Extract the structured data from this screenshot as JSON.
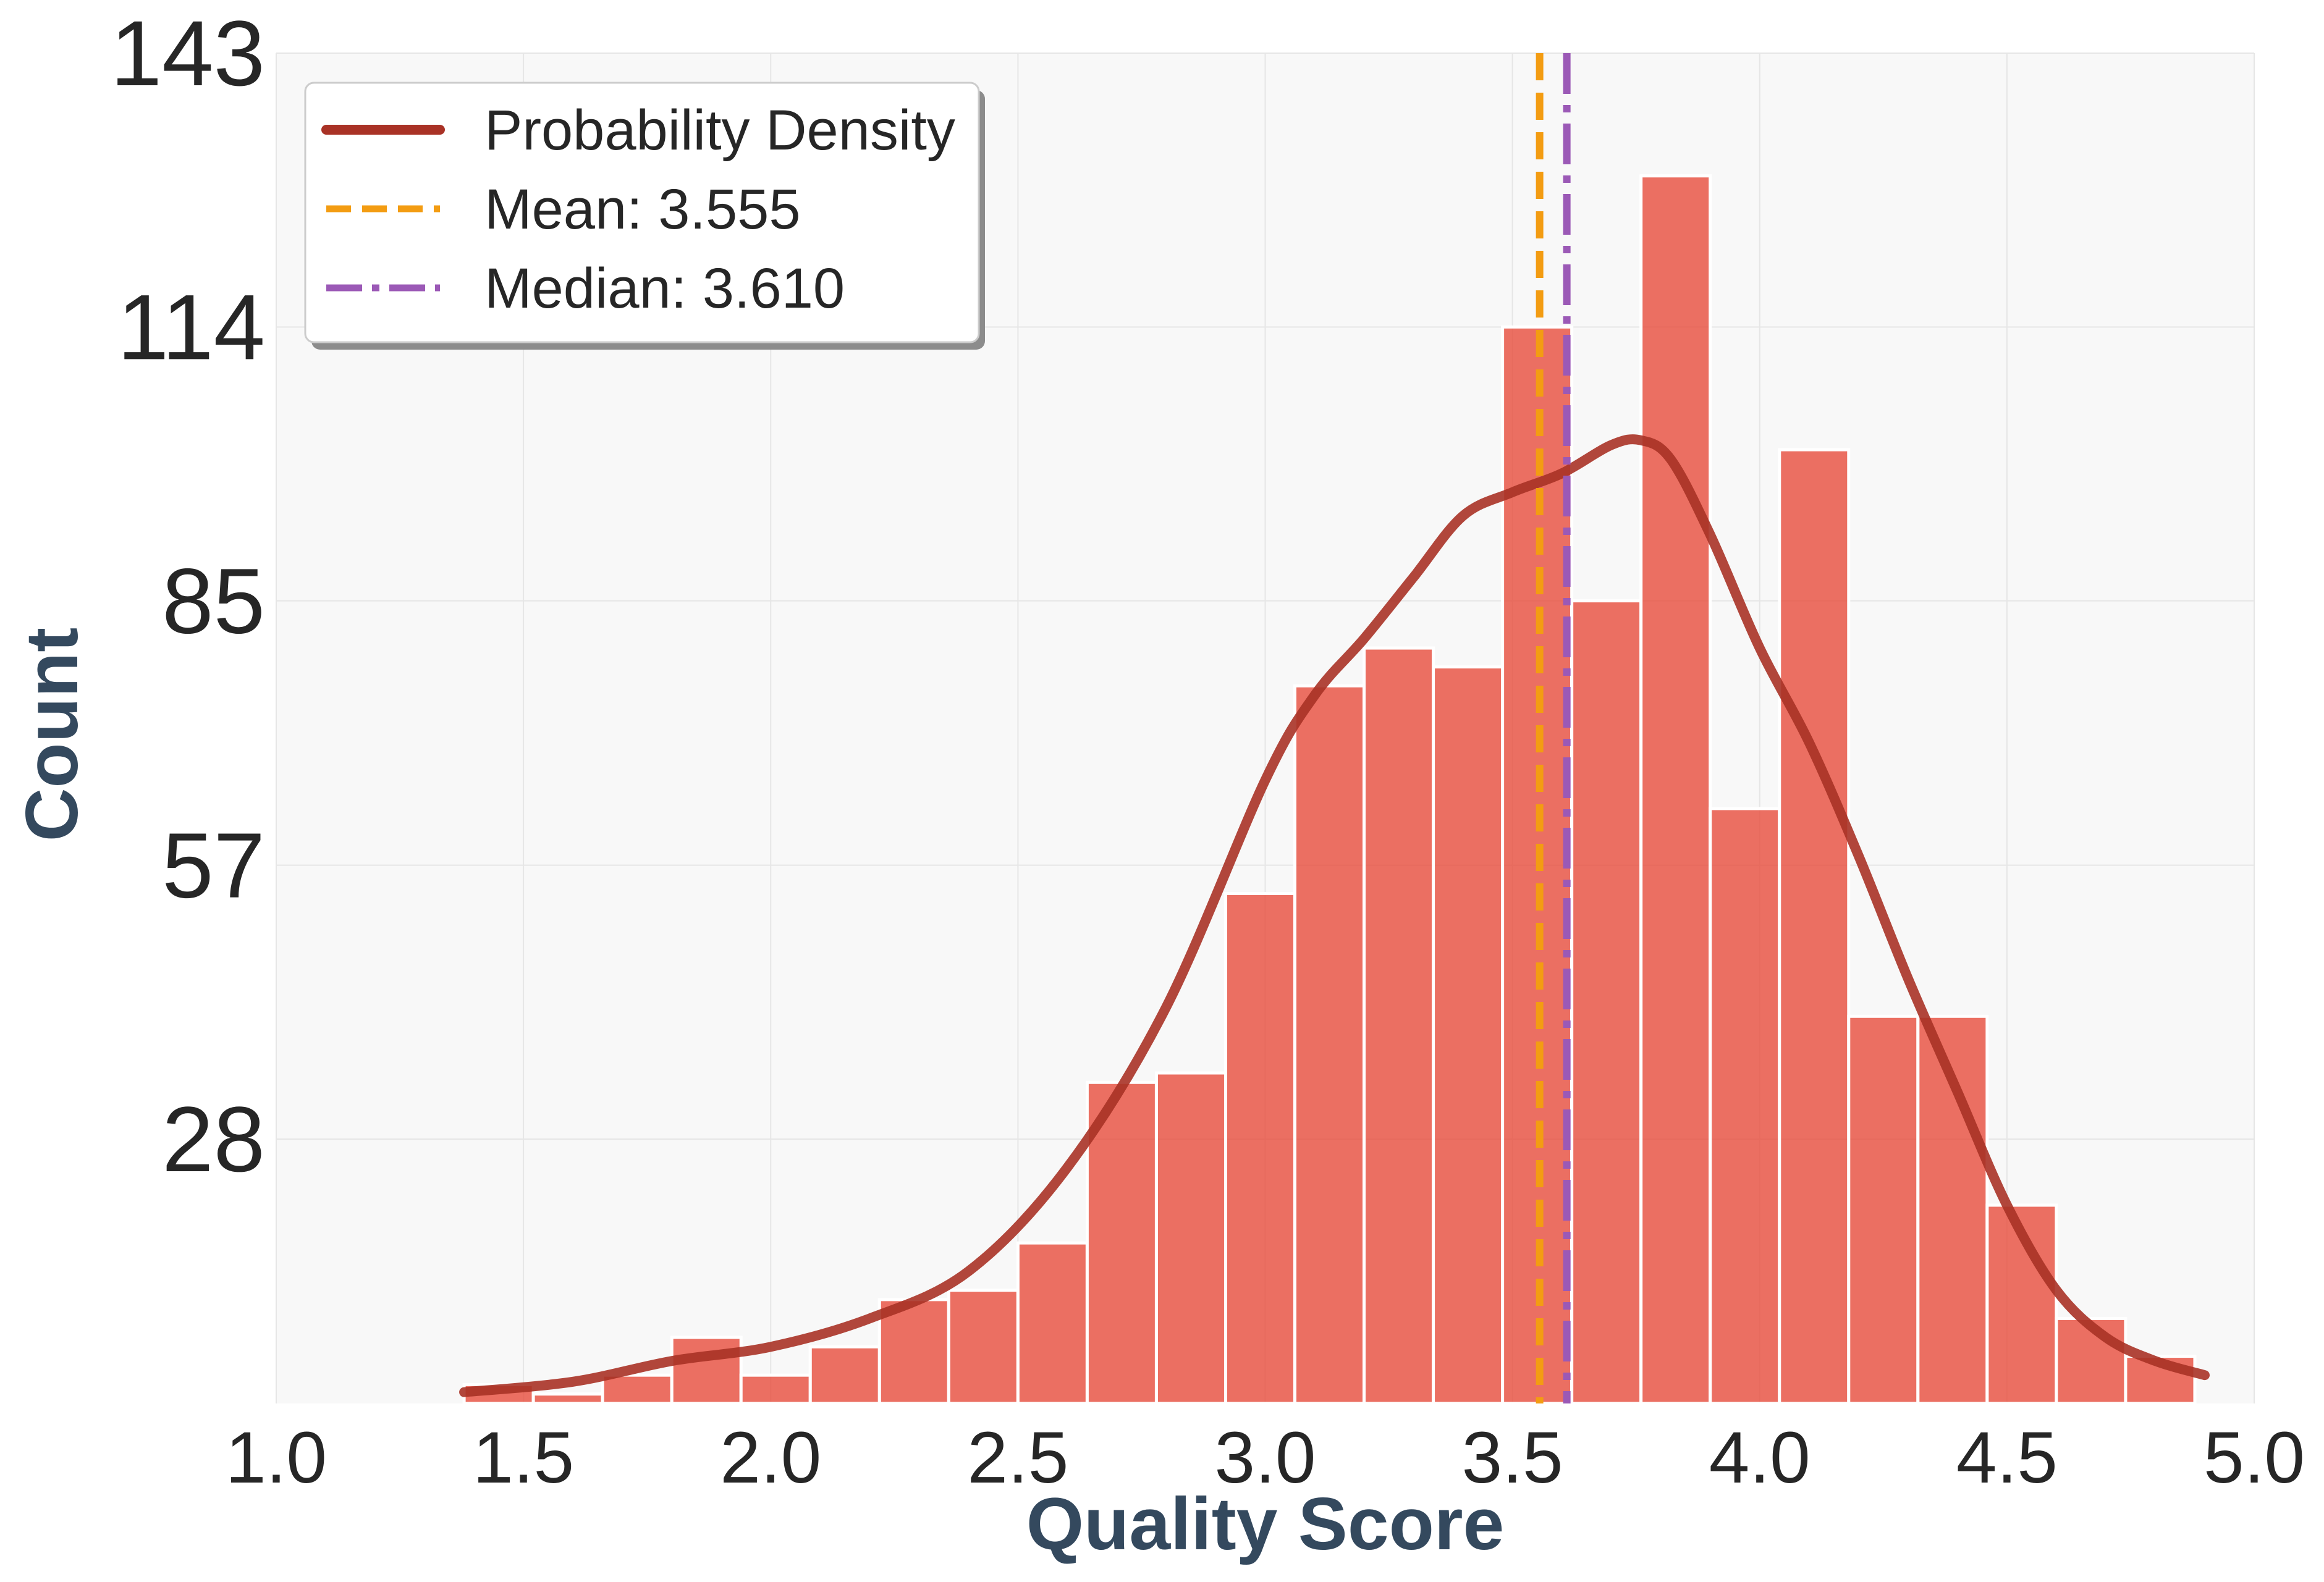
{
  "chart_data": {
    "type": "bar",
    "xlabel": "Quality Score",
    "ylabel": "Count",
    "xlim": [
      1.0,
      5.0
    ],
    "ylim": [
      0,
      143
    ],
    "xticks": [
      1.0,
      1.5,
      2.0,
      2.5,
      3.0,
      3.5,
      4.0,
      4.5,
      5.0
    ],
    "xtick_labels": [
      "1.0",
      "1.5",
      "2.0",
      "2.5",
      "3.0",
      "3.5",
      "4.0",
      "4.5",
      "5.0"
    ],
    "yticks": [
      28,
      57,
      85,
      114,
      143
    ],
    "ytick_labels": [
      "28",
      "57",
      "85",
      "114",
      "143"
    ],
    "grid": true,
    "legend_position": "top-left",
    "histogram": {
      "bin_edges": [
        1.38,
        1.52,
        1.66,
        1.8,
        1.94,
        2.08,
        2.22,
        2.36,
        2.5,
        2.64,
        2.78,
        2.92,
        3.06,
        3.2,
        3.34,
        3.48,
        3.62,
        3.76,
        3.9,
        4.04,
        4.18,
        4.32,
        4.46,
        4.6,
        4.74,
        4.88
      ],
      "counts": [
        2,
        1,
        3,
        7,
        3,
        6,
        11,
        12,
        17,
        34,
        35,
        54,
        76,
        80,
        78,
        114,
        85,
        130,
        63,
        101,
        41,
        41,
        21,
        9,
        5
      ],
      "color": "#e74c3c"
    },
    "series": [
      {
        "name": "Probability Density",
        "type": "line",
        "color": "#a93226",
        "x": [
          1.38,
          1.6,
          1.8,
          2.0,
          2.2,
          2.4,
          2.6,
          2.8,
          3.0,
          3.1,
          3.2,
          3.3,
          3.4,
          3.5,
          3.6,
          3.7,
          3.76,
          3.82,
          3.9,
          4.0,
          4.1,
          4.2,
          4.3,
          4.4,
          4.5,
          4.6,
          4.7,
          4.8,
          4.9
        ],
        "y": [
          1.2,
          2.3,
          4.5,
          6.0,
          9.0,
          14.0,
          25.0,
          42.0,
          66.0,
          75.0,
          81.0,
          87.5,
          94.0,
          96.5,
          98.5,
          101.5,
          102.0,
          100.0,
          92.0,
          80.0,
          70.0,
          58.0,
          45.0,
          33.0,
          21.0,
          12.0,
          7.0,
          4.5,
          3.0
        ]
      },
      {
        "name": "Mean: 3.555",
        "type": "vline",
        "x": 3.555,
        "color": "#f39c12",
        "style": "dashed"
      },
      {
        "name": "Median: 3.610",
        "type": "vline",
        "x": 3.61,
        "color": "#9b59b6",
        "style": "dashdot"
      }
    ]
  }
}
